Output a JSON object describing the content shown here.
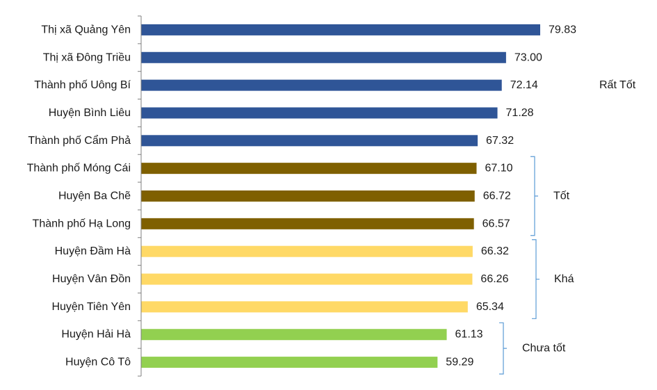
{
  "chart_data": {
    "type": "bar",
    "orientation": "horizontal",
    "title": "",
    "xlabel": "",
    "ylabel": "",
    "categories": [
      "Thị xã Quảng Yên",
      "Thị xã Đông Triều",
      "Thành phố Uông Bí",
      "Huyện Bình Liêu",
      "Thành phố Cẩm Phả",
      "Thành phố Móng Cái",
      "Huyện Ba Chẽ",
      "Thành phố Hạ Long",
      "Huyện Đầm Hà",
      "Huyện Vân Đồn",
      "Huyện Tiên Yên",
      "Huyện Hải Hà",
      "Huyện Cô Tô"
    ],
    "values": [
      79.83,
      73.0,
      72.14,
      71.28,
      67.32,
      67.1,
      66.72,
      66.57,
      66.32,
      66.26,
      65.34,
      61.13,
      59.29
    ],
    "value_labels": [
      "79.83",
      "73.00",
      "72.14",
      "71.28",
      "67.32",
      "67.10",
      "66.72",
      "66.57",
      "66.32",
      "66.26",
      "65.34",
      "61.13",
      "59.29"
    ],
    "xlim": [
      0,
      90
    ],
    "grid": false,
    "legend": "none",
    "groups": [
      {
        "label": "Rất Tốt",
        "start": 0,
        "end": 4,
        "color": "#2f5597",
        "bracket": false
      },
      {
        "label": "Tốt",
        "start": 5,
        "end": 7,
        "color": "#7f6000",
        "bracket": true
      },
      {
        "label": "Khá",
        "start": 8,
        "end": 10,
        "color": "#ffd966",
        "bracket": true
      },
      {
        "label": "Chưa tốt",
        "start": 11,
        "end": 12,
        "color": "#92d050",
        "bracket": true
      }
    ],
    "bracket_color": "#5b9bd5",
    "axis_color": "#7f7f7f"
  }
}
